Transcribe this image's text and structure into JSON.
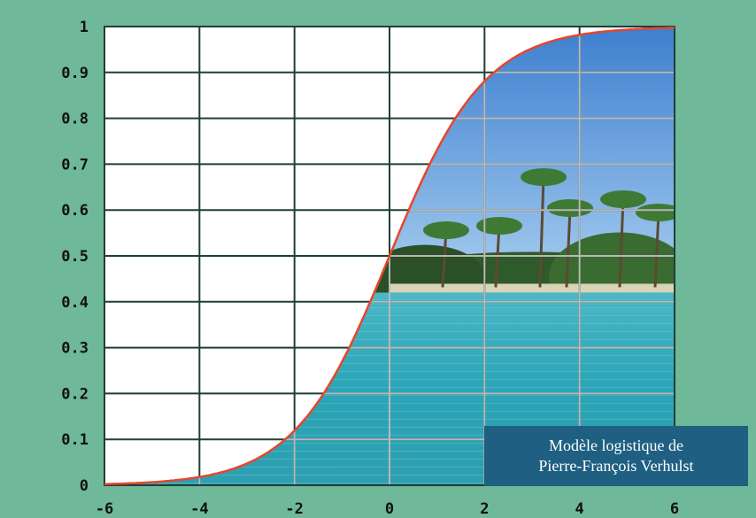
{
  "colors": {
    "background": "#6fb89a",
    "curve": "#e8452c",
    "plot_background": "#ffffff",
    "grid_dark": "#1e3f35",
    "grid_light": "#b8b8b8",
    "caption_background": "#1f5f82",
    "caption_text": "#ffffff"
  },
  "caption": {
    "line1": "Modèle logistique de",
    "line2": "Pierre-François Verhulst"
  },
  "chart_data": {
    "type": "line",
    "function": "logistic",
    "x": [
      -6,
      -5,
      -4,
      -3,
      -2,
      -1,
      0,
      1,
      2,
      3,
      4,
      5,
      6
    ],
    "y": [
      0.0025,
      0.0067,
      0.018,
      0.047,
      0.119,
      0.269,
      0.5,
      0.731,
      0.881,
      0.953,
      0.982,
      0.993,
      0.9975
    ],
    "xlim": [
      -6,
      6
    ],
    "ylim": [
      0,
      1
    ],
    "x_ticks": [
      "-6",
      "-4",
      "-2",
      "0",
      "2",
      "4",
      "6"
    ],
    "y_ticks": [
      "0",
      "0.1",
      "0.2",
      "0.3",
      "0.4",
      "0.5",
      "0.6",
      "0.7",
      "0.8",
      "0.9",
      "1"
    ],
    "grid": true,
    "area_fill_below_curve": "photo of tropical island with palm trees and turquoise lagoon",
    "xlabel": "",
    "ylabel": "",
    "title": ""
  }
}
